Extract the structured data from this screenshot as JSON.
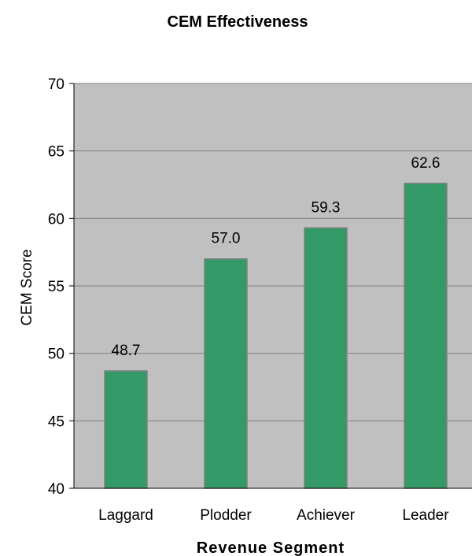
{
  "chart_data": {
    "type": "bar",
    "title": "CEM Effectiveness",
    "xlabel": "Revenue Segment",
    "ylabel": "CEM Score",
    "categories": [
      "Laggard",
      "Plodder",
      "Achiever",
      "Leader"
    ],
    "values": [
      48.7,
      57.0,
      59.3,
      62.6
    ],
    "data_labels": [
      "48.7",
      "57.0",
      "59.3",
      "62.6"
    ],
    "ylim": [
      40,
      70
    ],
    "yticks": [
      40,
      45,
      50,
      55,
      60,
      65,
      70
    ],
    "grid": true,
    "legend": "none",
    "colors": {
      "bar": "#339966",
      "bar_border": "#808080",
      "plot_background": "#c0c0c0",
      "gridline": "#808080",
      "axis": "#000000"
    }
  }
}
